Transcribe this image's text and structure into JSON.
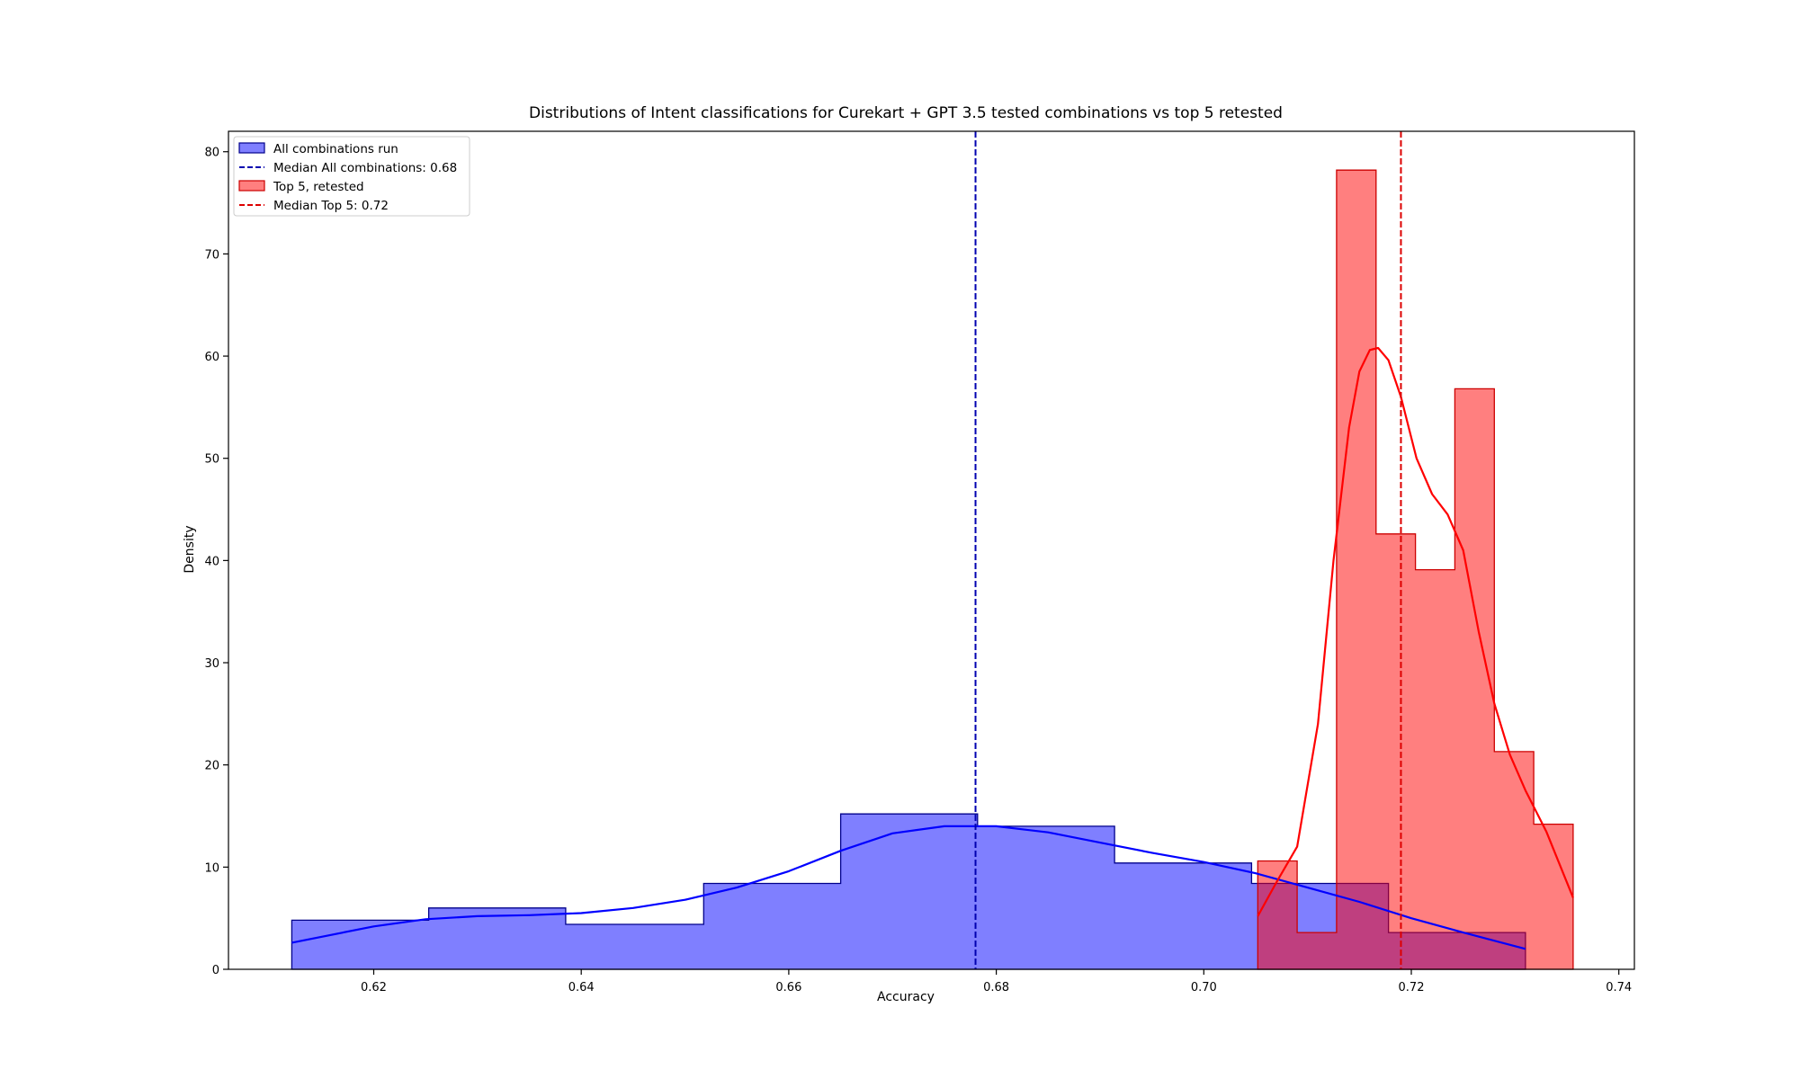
{
  "chart_data": {
    "type": "histogram",
    "title": "Distributions of Intent classifications for Curekart + GPT 3.5 tested combinations vs top 5 retested",
    "xlabel": "Accuracy",
    "ylabel": "Density",
    "xlim": [
      0.606,
      0.7415
    ],
    "ylim": [
      0,
      82
    ],
    "xticks": [
      0.62,
      0.64,
      0.66,
      0.68,
      0.7,
      0.72,
      0.74
    ],
    "xtick_labels": [
      "0.62",
      "0.64",
      "0.66",
      "0.68",
      "0.70",
      "0.72",
      "0.74"
    ],
    "yticks": [
      0,
      10,
      20,
      30,
      40,
      50,
      60,
      70,
      80
    ],
    "ytick_labels": [
      "0",
      "10",
      "20",
      "30",
      "40",
      "50",
      "60",
      "70",
      "80"
    ],
    "grid": false,
    "legend_position": "upper-left",
    "series": [
      {
        "name": "All combinations run",
        "color": "#0000ff",
        "edge_color": "#00008b",
        "alpha": 0.5,
        "bin_edges": [
          0.6121,
          0.6253,
          0.6385,
          0.6518,
          0.665,
          0.6782,
          0.6914,
          0.7046,
          0.7178,
          0.731
        ],
        "densities": [
          4.8,
          6.0,
          4.4,
          8.4,
          15.2,
          14.0,
          10.4,
          8.4,
          3.6
        ],
        "kde": {
          "x": [
            0.6121,
            0.62,
            0.625,
            0.63,
            0.635,
            0.64,
            0.645,
            0.65,
            0.655,
            0.66,
            0.665,
            0.67,
            0.675,
            0.68,
            0.685,
            0.69,
            0.695,
            0.7,
            0.705,
            0.71,
            0.715,
            0.72,
            0.725,
            0.731
          ],
          "y": [
            2.6,
            4.2,
            4.9,
            5.2,
            5.3,
            5.5,
            6.0,
            6.8,
            8.0,
            9.6,
            11.6,
            13.3,
            14.0,
            14.0,
            13.4,
            12.4,
            11.4,
            10.5,
            9.4,
            8.0,
            6.6,
            5.0,
            3.6,
            2.0
          ]
        }
      },
      {
        "name": "Top 5, retested",
        "color": "#ff0000",
        "edge_color": "#cc0000",
        "alpha": 0.5,
        "bin_edges": [
          0.7052,
          0.709,
          0.7128,
          0.7166,
          0.7204,
          0.7242,
          0.728,
          0.7318,
          0.7356
        ],
        "densities": [
          10.6,
          3.6,
          78.2,
          42.6,
          39.1,
          56.8,
          21.3,
          14.2
        ],
        "kde": {
          "x": [
            0.7052,
            0.707,
            0.709,
            0.711,
            0.7125,
            0.714,
            0.715,
            0.716,
            0.7168,
            0.7178,
            0.719,
            0.7205,
            0.722,
            0.7235,
            0.725,
            0.7265,
            0.728,
            0.7295,
            0.731,
            0.733,
            0.7356
          ],
          "y": [
            5.2,
            8.5,
            12.0,
            24.0,
            40.0,
            53.0,
            58.5,
            60.6,
            60.8,
            59.6,
            56.0,
            50.0,
            46.5,
            44.5,
            41.0,
            33.0,
            26.0,
            21.0,
            17.5,
            13.5,
            7.0
          ]
        }
      }
    ],
    "medians": [
      {
        "name": "Median All combinations: 0.68",
        "value": 0.678,
        "color": "#0000b0"
      },
      {
        "name": "Median Top 5: 0.72",
        "value": 0.719,
        "color": "#dd0000"
      }
    ]
  }
}
